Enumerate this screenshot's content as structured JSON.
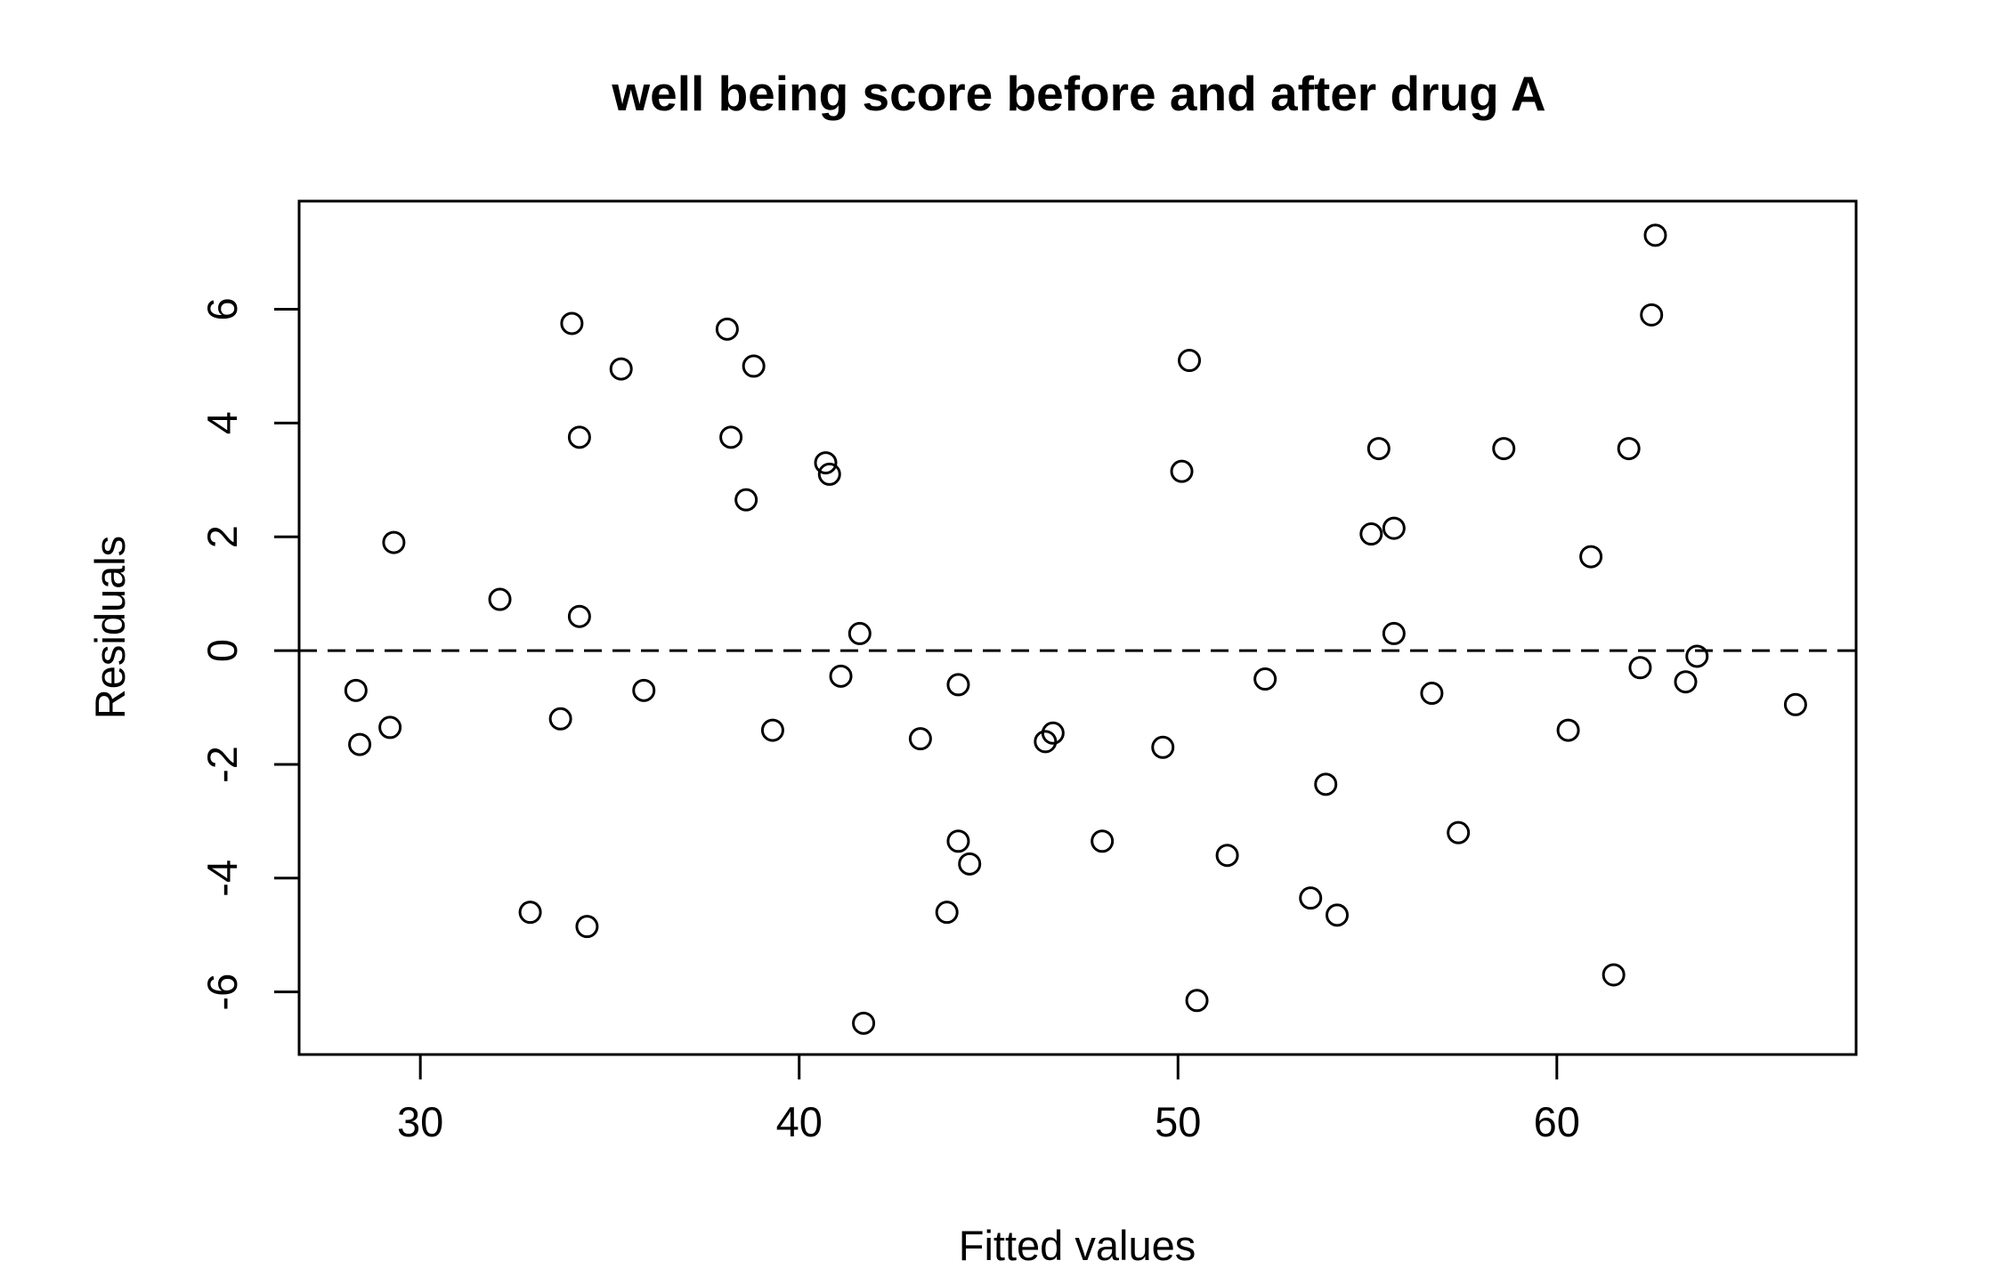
{
  "chart_data": {
    "type": "scatter",
    "title": "well being score before and after drug A",
    "xlabel": "Fitted values",
    "ylabel": "Residuals",
    "xlim": [
      26.8,
      67.9
    ],
    "ylim": [
      -7.1,
      7.9
    ],
    "xticks": [
      30,
      40,
      50,
      60
    ],
    "yticks": [
      -6,
      -4,
      -2,
      0,
      2,
      4,
      6
    ],
    "reference_line": {
      "y": 0,
      "style": "dashed"
    },
    "grid": false,
    "series": [
      {
        "marker": "open-circle",
        "points": [
          {
            "x": 28.3,
            "y": -0.7
          },
          {
            "x": 28.4,
            "y": -1.65
          },
          {
            "x": 29.2,
            "y": -1.35
          },
          {
            "x": 29.3,
            "y": 1.9
          },
          {
            "x": 32.1,
            "y": 0.9
          },
          {
            "x": 32.9,
            "y": -4.6
          },
          {
            "x": 33.7,
            "y": -1.2
          },
          {
            "x": 34.0,
            "y": 5.75
          },
          {
            "x": 34.2,
            "y": 3.75
          },
          {
            "x": 34.2,
            "y": 0.6
          },
          {
            "x": 34.4,
            "y": -4.85
          },
          {
            "x": 35.3,
            "y": 4.95
          },
          {
            "x": 35.9,
            "y": -0.7
          },
          {
            "x": 38.1,
            "y": 5.65
          },
          {
            "x": 38.2,
            "y": 3.75
          },
          {
            "x": 38.6,
            "y": 2.65
          },
          {
            "x": 38.8,
            "y": 5.0
          },
          {
            "x": 39.3,
            "y": -1.4
          },
          {
            "x": 40.7,
            "y": 3.3
          },
          {
            "x": 40.8,
            "y": 3.1
          },
          {
            "x": 41.1,
            "y": -0.45
          },
          {
            "x": 41.6,
            "y": 0.3
          },
          {
            "x": 41.7,
            "y": -6.55
          },
          {
            "x": 43.2,
            "y": -1.55
          },
          {
            "x": 43.9,
            "y": -4.6
          },
          {
            "x": 44.2,
            "y": -3.35
          },
          {
            "x": 44.2,
            "y": -0.6
          },
          {
            "x": 44.5,
            "y": -3.75
          },
          {
            "x": 46.5,
            "y": -1.6
          },
          {
            "x": 46.7,
            "y": -1.45
          },
          {
            "x": 48.0,
            "y": -3.35
          },
          {
            "x": 49.6,
            "y": -1.7
          },
          {
            "x": 50.1,
            "y": 3.15
          },
          {
            "x": 50.3,
            "y": 5.1
          },
          {
            "x": 50.5,
            "y": -6.15
          },
          {
            "x": 51.3,
            "y": -3.6
          },
          {
            "x": 52.3,
            "y": -0.5
          },
          {
            "x": 53.5,
            "y": -4.35
          },
          {
            "x": 53.9,
            "y": -2.35
          },
          {
            "x": 54.2,
            "y": -4.65
          },
          {
            "x": 55.1,
            "y": 2.05
          },
          {
            "x": 55.3,
            "y": 3.55
          },
          {
            "x": 55.7,
            "y": 2.15
          },
          {
            "x": 55.7,
            "y": 0.3
          },
          {
            "x": 56.7,
            "y": -0.75
          },
          {
            "x": 57.4,
            "y": -3.2
          },
          {
            "x": 58.6,
            "y": 3.55
          },
          {
            "x": 60.3,
            "y": -1.4
          },
          {
            "x": 60.9,
            "y": 1.65
          },
          {
            "x": 61.5,
            "y": -5.7
          },
          {
            "x": 61.9,
            "y": 3.55
          },
          {
            "x": 62.2,
            "y": -0.3
          },
          {
            "x": 62.5,
            "y": 5.9
          },
          {
            "x": 62.6,
            "y": 7.3
          },
          {
            "x": 63.4,
            "y": -0.55
          },
          {
            "x": 63.7,
            "y": -0.1
          },
          {
            "x": 66.3,
            "y": -0.95
          }
        ]
      }
    ]
  }
}
